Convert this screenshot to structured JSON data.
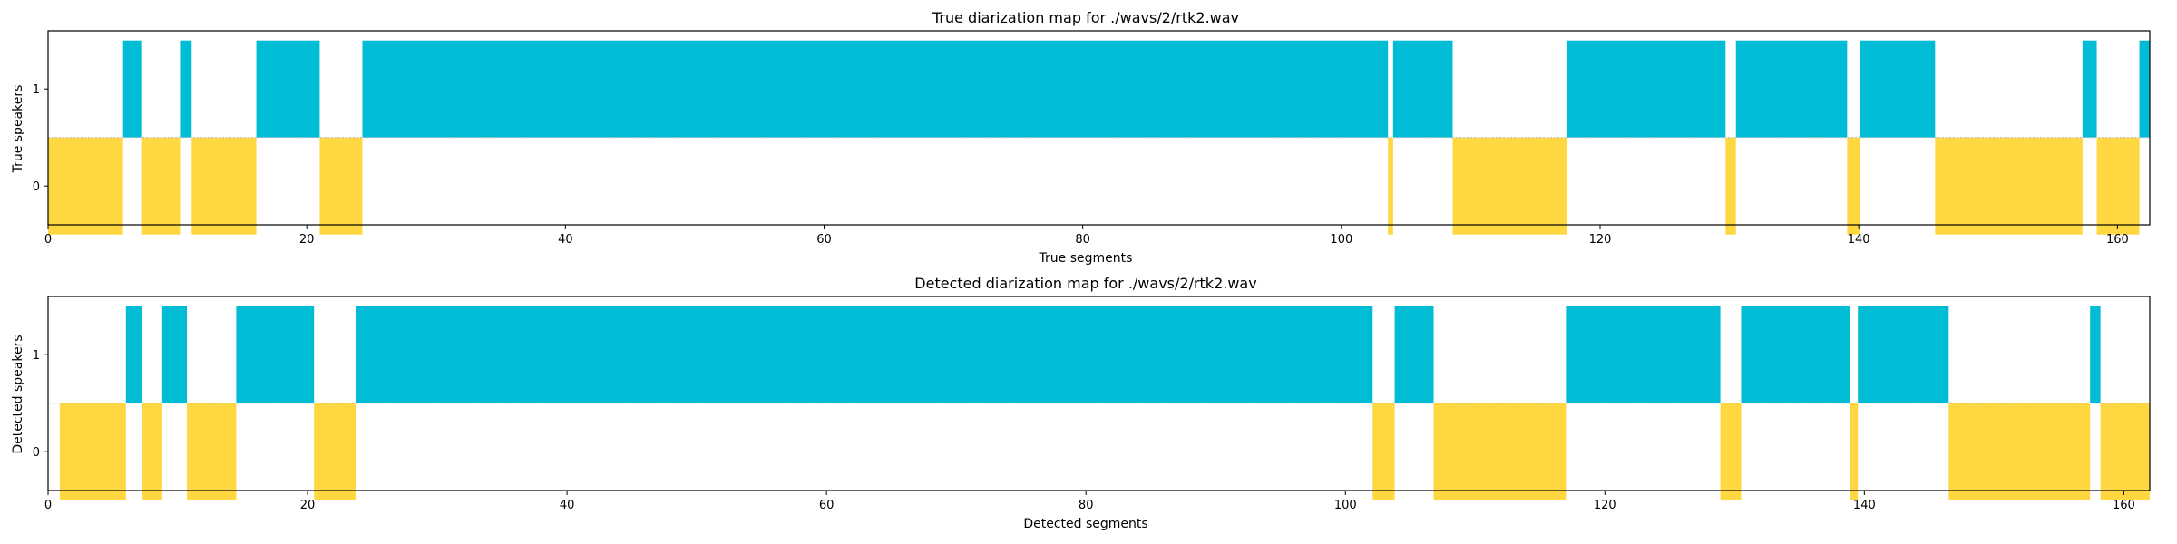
{
  "colors": {
    "speaker_0": "#FFD740",
    "speaker_1": "#00BCD4",
    "divider": "#BDBDBD",
    "axis": "#000000"
  },
  "chart_data": [
    {
      "type": "bar",
      "title": "True diarization map for ./wavs/2/rtk2.wav",
      "xlabel": "True segments",
      "ylabel": "True speakers",
      "xlim": [
        0,
        162.5
      ],
      "ylim": [
        -0.4,
        1.6
      ],
      "xticks": [
        0,
        20,
        40,
        60,
        80,
        100,
        120,
        140,
        160
      ],
      "yticks": [
        0,
        1
      ],
      "grid": false,
      "series": [
        {
          "speaker": "0",
          "intervals": [
            [
              0,
              5.8
            ],
            [
              7.2,
              10.2
            ],
            [
              11.1,
              16.1
            ],
            [
              21,
              24.3
            ],
            [
              103.6,
              104
            ],
            [
              108.6,
              117.4
            ],
            [
              129.7,
              130.5
            ],
            [
              139.1,
              140.1
            ],
            [
              145.9,
              157.3
            ],
            [
              158.4,
              161.7
            ]
          ]
        },
        {
          "speaker": "1",
          "intervals": [
            [
              5.8,
              7.2
            ],
            [
              10.2,
              11.1
            ],
            [
              16.1,
              21
            ],
            [
              24.3,
              103.6
            ],
            [
              104,
              108.6
            ],
            [
              117.4,
              129.7
            ],
            [
              130.5,
              139.1
            ],
            [
              140.1,
              145.9
            ],
            [
              157.3,
              158.4
            ],
            [
              161.7,
              162.5
            ]
          ]
        }
      ]
    },
    {
      "type": "bar",
      "title": "Detected diarization map for ./wavs/2/rtk2.wav",
      "xlabel": "Detected segments",
      "ylabel": "Detected speakers",
      "xlim": [
        0,
        162
      ],
      "ylim": [
        -0.4,
        1.6
      ],
      "xticks": [
        0,
        20,
        40,
        60,
        80,
        100,
        120,
        140,
        160
      ],
      "yticks": [
        0,
        1
      ],
      "grid": false,
      "series": [
        {
          "speaker": "0",
          "intervals": [
            [
              0.9,
              6
            ],
            [
              7.2,
              8.8
            ],
            [
              10.7,
              14.5
            ],
            [
              20.5,
              23.7
            ],
            [
              102.1,
              103.8
            ],
            [
              106.8,
              117
            ],
            [
              128.9,
              130.5
            ],
            [
              138.9,
              139.5
            ],
            [
              146.5,
              157.4
            ],
            [
              158.2,
              162
            ]
          ]
        },
        {
          "speaker": "1",
          "intervals": [
            [
              6,
              7.2
            ],
            [
              8.8,
              10.7
            ],
            [
              14.5,
              20.5
            ],
            [
              23.7,
              102.1
            ],
            [
              103.8,
              106.8
            ],
            [
              117,
              128.9
            ],
            [
              130.5,
              138.9
            ],
            [
              139.5,
              146.5
            ],
            [
              157.4,
              158.2
            ]
          ]
        }
      ]
    }
  ]
}
